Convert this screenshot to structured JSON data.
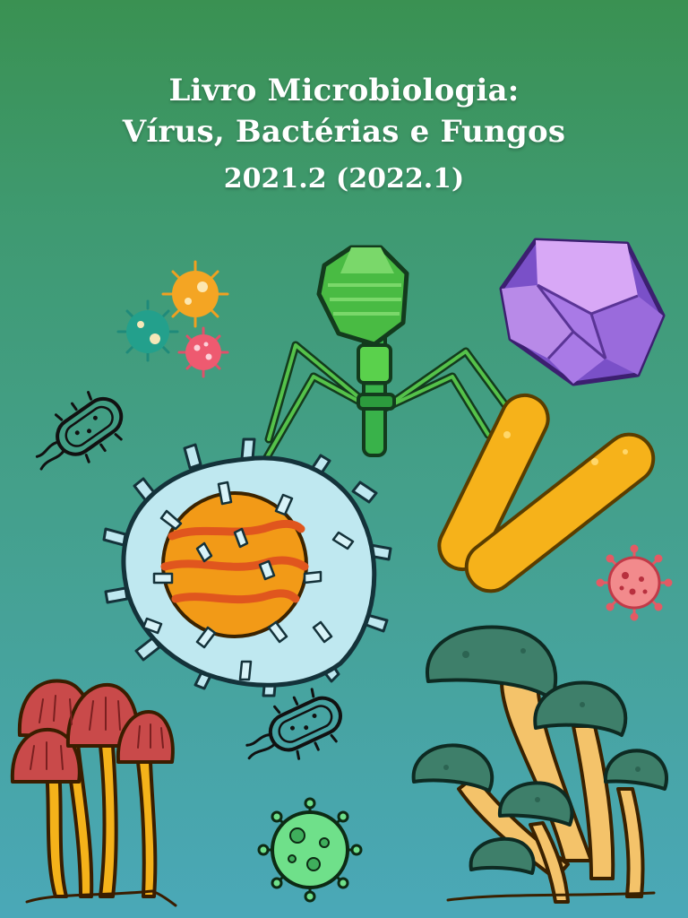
{
  "cover": {
    "title_line_1": "Livro Microbiologia:",
    "title_line_2": "Vírus, Bactérias e Fungos",
    "edition": "2021.2 (2022.1)"
  },
  "colors": {
    "background_top": "#3a9152",
    "background_bottom": "#4aa8b8",
    "bacteria_yellow": "#f6b21a",
    "phage_green": "#4fbf4a",
    "capsid_purple": "#a880e6",
    "virion_cyan": "#bfe8f0",
    "mushroom_red": "#c94a4a",
    "mushroom_teal": "#3e7f6a"
  },
  "illustrations": [
    "bacteriophage-icon",
    "icosahedral-capsid-icon",
    "spiky-virus-cell-icon",
    "rod-bacteria-icon",
    "flagellated-bacterium-icon",
    "coronavirus-icon",
    "red-mushrooms-icon",
    "green-mushrooms-icon"
  ]
}
